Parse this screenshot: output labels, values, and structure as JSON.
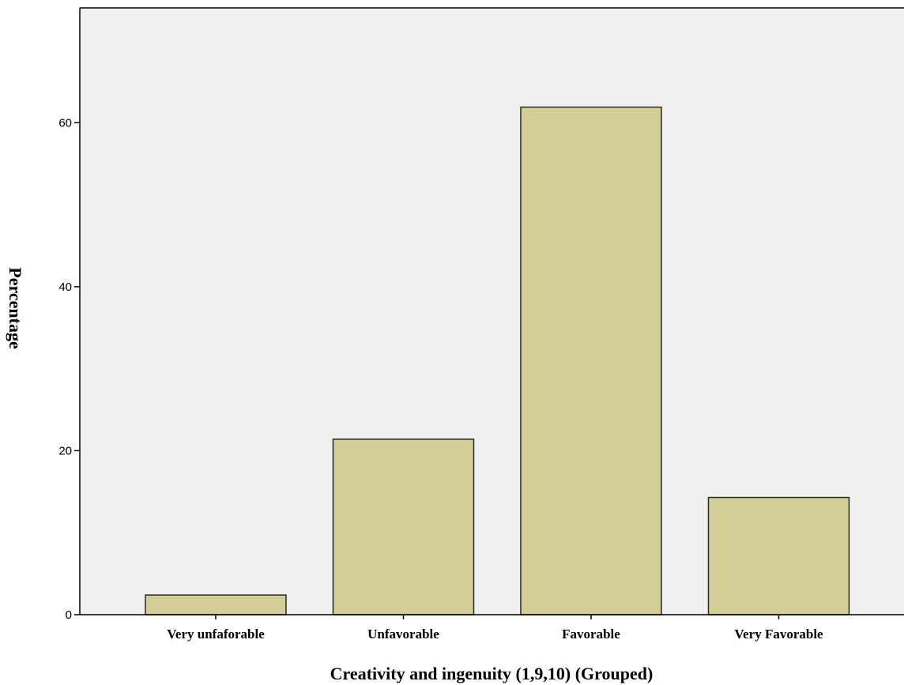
{
  "colors": {
    "plot_background": "#f0f0f0",
    "bar_fill": "#d3ce97",
    "bar_stroke": "#2a2a1a",
    "axis": "#000000"
  },
  "chart_data": {
    "type": "bar",
    "categories": [
      "Very unfaforable",
      "Unfavorable",
      "Favorable",
      "Very Favorable"
    ],
    "values": [
      2.4,
      21.4,
      61.9,
      14.3
    ],
    "xlabel": "Creativity and ingenuity (1,9,10) (Grouped)",
    "ylabel": "Percentage",
    "ylim": [
      0,
      74
    ],
    "yticks": [
      0,
      20,
      40,
      60
    ],
    "grid": false,
    "legend": "none"
  }
}
